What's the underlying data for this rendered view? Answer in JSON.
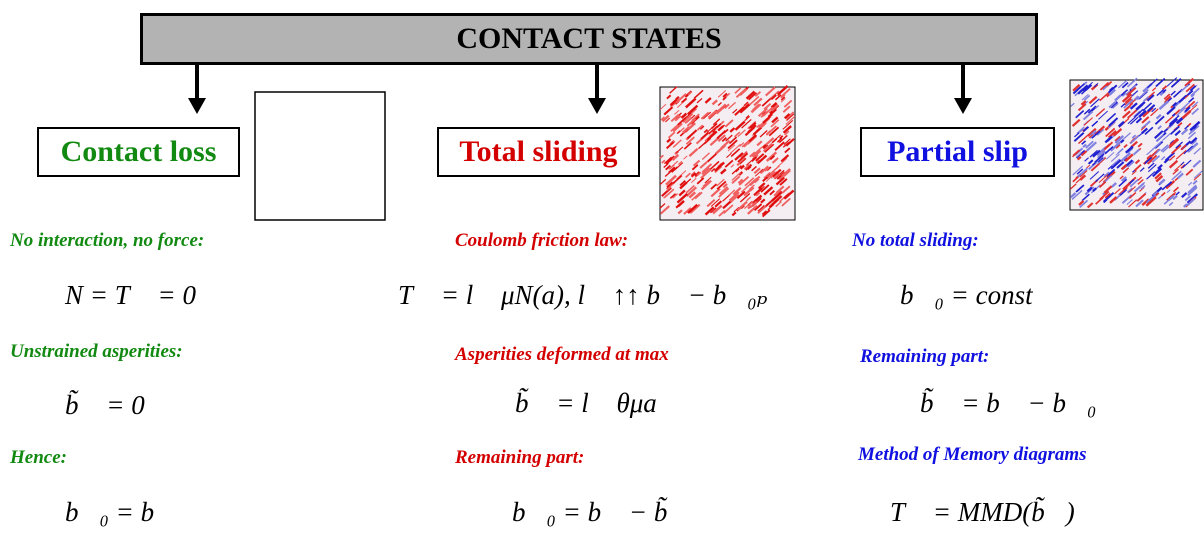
{
  "header": {
    "title": "CONTACT STATES"
  },
  "columns": [
    {
      "label": "Contact loss",
      "items": [
        {
          "caption": "No interaction, no force:",
          "equation": "N = T⃗ = 0"
        },
        {
          "caption": "Unstrained asperities:",
          "equation": "b̃⃗ = 0"
        },
        {
          "caption": "Hence:",
          "equation": "b⃗₀ = b⃗"
        }
      ]
    },
    {
      "label": "Total sliding",
      "items": [
        {
          "caption": "Coulomb friction law:",
          "equation": "T⃗ = l⃗ μN(a),  l⃗ ↑↑ b⃗ − b⃗₀ₚ"
        },
        {
          "caption": "Asperities deformed at max",
          "equation": "b̃⃗ = l⃗ θμa"
        },
        {
          "caption": "Remaining part:",
          "equation": "b⃗₀ = b⃗ − b̃⃗"
        }
      ]
    },
    {
      "label": "Partial slip",
      "items": [
        {
          "caption": "No total sliding:",
          "equation": "b⃗₀ = const"
        },
        {
          "caption": "Remaining part:",
          "equation": "b̃⃗ = b⃗ − b⃗₀"
        },
        {
          "caption": "Method of Memory diagrams",
          "equation": "T⃗ = MMD(b̃⃗)"
        }
      ]
    }
  ]
}
